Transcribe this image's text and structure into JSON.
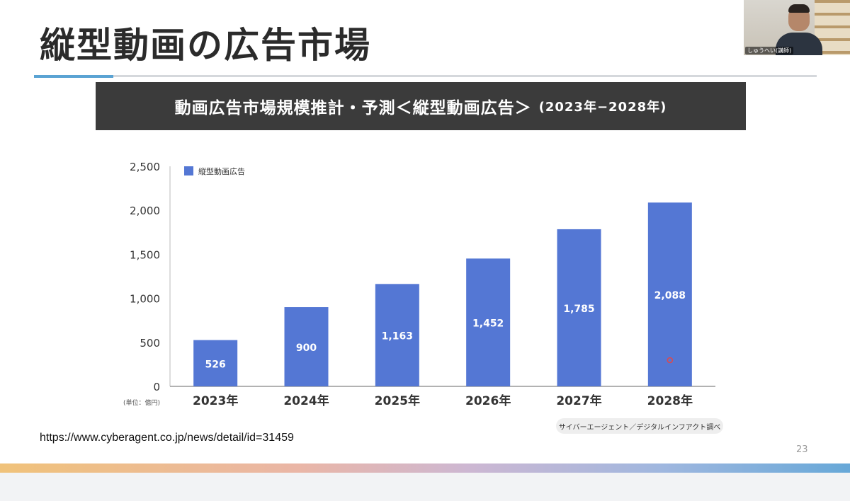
{
  "slide": {
    "title": "縦型動画の広告市場",
    "banner_title": "動画広告市場規模推計・予測＜縦型動画広告＞",
    "banner_years": "(2023年−2028年)",
    "source_url": "https://www.cyberagent.co.jp/news/detail/id=31459",
    "credit": "サイバーエージェント／デジタルインフアクト調べ",
    "page_number": "23"
  },
  "presenter": {
    "name": "しゅうへい(講師)"
  },
  "colors": {
    "bar": "#5477d4",
    "banner": "#3b3b3b",
    "accent_line": "#5aa3d3"
  },
  "chart_data": {
    "type": "bar",
    "categories": [
      "2023年",
      "2024年",
      "2025年",
      "2026年",
      "2027年",
      "2028年"
    ],
    "series": [
      {
        "name": "縦型動画広告",
        "values": [
          526,
          900,
          1163,
          1452,
          1785,
          2088
        ]
      }
    ],
    "value_labels": [
      "526",
      "900",
      "1,163",
      "1,452",
      "1,785",
      "2,088"
    ],
    "yticks": [
      0,
      500,
      1000,
      1500,
      2000,
      2500
    ],
    "ytick_labels": [
      "0",
      "500",
      "1,000",
      "1,500",
      "2,000",
      "2,500"
    ],
    "ylim": [
      0,
      2500
    ],
    "unit_label": "(単位：億円)",
    "legend": "top-left",
    "grid": false
  }
}
